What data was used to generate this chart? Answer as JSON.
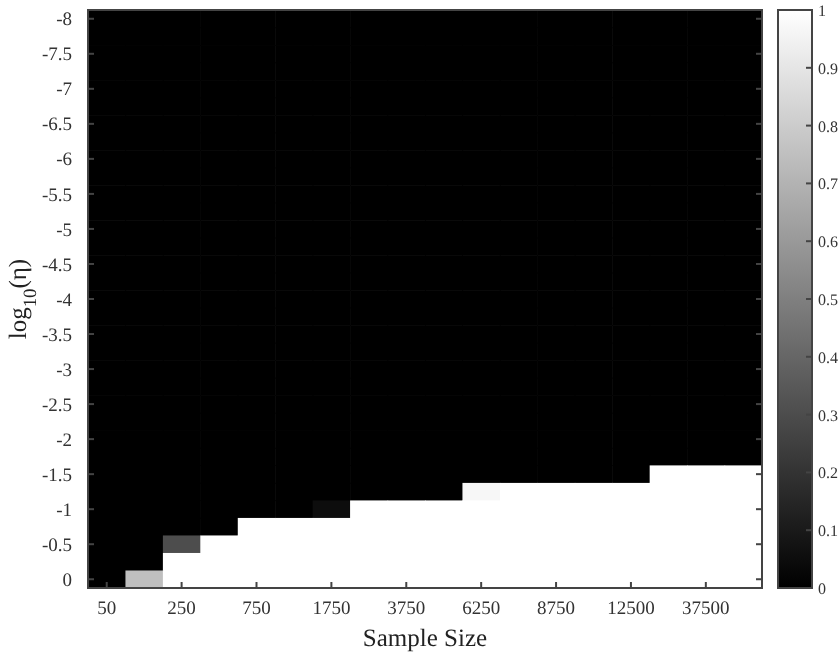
{
  "chart_data": {
    "type": "heatmap",
    "xlabel": "Sample Size",
    "ylabel": "log$_{10}$(η)",
    "categories": [
      "50",
      null,
      "250",
      null,
      "750",
      null,
      "1750",
      null,
      "3750",
      null,
      "6250",
      null,
      "8750",
      null,
      "12500",
      null,
      "37500",
      null
    ],
    "y_categories": [
      "-8",
      null,
      "-7.5",
      null,
      "-7",
      null,
      "-6.5",
      null,
      "-6",
      null,
      "-5.5",
      null,
      "-5",
      null,
      "-4.5",
      null,
      "-4",
      null,
      "-3.5",
      null,
      "-3",
      null,
      "-2.5",
      null,
      "-2",
      null,
      "-1.5",
      null,
      "-1",
      null,
      "-0.5",
      null,
      "0"
    ],
    "cells": [
      [
        0,
        0,
        0,
        0,
        0,
        0,
        0,
        0,
        0,
        0,
        0,
        0,
        0,
        0,
        0,
        0,
        0,
        0
      ],
      [
        0,
        0,
        0,
        0,
        0,
        0,
        0,
        0,
        0,
        0,
        0,
        0,
        0,
        0,
        0,
        0,
        0,
        0
      ],
      [
        0,
        0,
        0,
        0,
        0,
        0,
        0,
        0,
        0,
        0,
        0,
        0,
        0,
        0,
        0,
        0,
        0,
        0
      ],
      [
        0,
        0,
        0,
        0,
        0,
        0,
        0,
        0,
        0,
        0,
        0,
        0,
        0,
        0,
        0,
        0,
        0,
        0
      ],
      [
        0,
        0,
        0,
        0,
        0,
        0,
        0,
        0,
        0,
        0,
        0,
        0,
        0,
        0,
        0,
        0,
        0,
        0
      ],
      [
        0,
        0,
        0,
        0,
        0,
        0,
        0,
        0,
        0,
        0,
        0,
        0,
        0,
        0,
        0,
        0,
        0,
        0
      ],
      [
        0,
        0,
        0,
        0,
        0,
        0,
        0,
        0,
        0,
        0,
        0,
        0,
        0,
        0,
        0,
        0,
        0,
        0
      ],
      [
        0,
        0,
        0,
        0,
        0,
        0,
        0,
        0,
        0,
        0,
        0,
        0,
        0,
        0,
        0,
        0,
        0,
        0
      ],
      [
        0,
        0,
        0,
        0,
        0,
        0,
        0,
        0,
        0,
        0,
        0,
        0,
        0,
        0,
        0,
        0,
        0,
        0
      ],
      [
        0,
        0,
        0,
        0,
        0,
        0,
        0,
        0,
        0,
        0,
        0,
        0,
        0,
        0,
        0,
        0,
        0,
        0
      ],
      [
        0,
        0,
        0,
        0,
        0,
        0,
        0,
        0,
        0,
        0,
        0,
        0,
        0,
        0,
        0,
        0,
        0,
        0
      ],
      [
        0,
        0,
        0,
        0,
        0,
        0,
        0,
        0,
        0,
        0,
        0,
        0,
        0,
        0,
        0,
        0,
        0,
        0
      ],
      [
        0,
        0,
        0,
        0,
        0,
        0,
        0,
        0,
        0,
        0,
        0,
        0,
        0,
        0,
        0,
        0,
        0,
        0
      ],
      [
        0,
        0,
        0,
        0,
        0,
        0,
        0,
        0,
        0,
        0,
        0,
        0,
        0,
        0,
        0,
        0,
        0,
        0
      ],
      [
        0,
        0,
        0,
        0,
        0,
        0,
        0,
        0,
        0,
        0,
        0,
        0,
        0,
        0,
        0,
        0,
        0,
        0
      ],
      [
        0,
        0,
        0,
        0,
        0,
        0,
        0,
        0,
        0,
        0,
        0,
        0,
        0,
        0,
        0,
        0,
        0,
        0
      ],
      [
        0,
        0,
        0,
        0,
        0,
        0,
        0,
        0,
        0,
        0,
        0,
        0,
        0,
        0,
        0,
        0,
        0,
        0
      ],
      [
        0,
        0,
        0,
        0,
        0,
        0,
        0,
        0,
        0,
        0,
        0,
        0,
        0,
        0,
        0,
        0,
        0,
        0
      ],
      [
        0,
        0,
        0,
        0,
        0,
        0,
        0,
        0,
        0,
        0,
        0,
        0,
        0,
        0,
        0,
        0,
        0,
        0
      ],
      [
        0,
        0,
        0,
        0,
        0,
        0,
        0,
        0,
        0,
        0,
        0,
        0,
        0,
        0,
        0,
        0,
        0,
        0
      ],
      [
        0,
        0,
        0,
        0,
        0,
        0,
        0,
        0,
        0,
        0,
        0,
        0,
        0,
        0,
        0,
        0,
        0,
        0
      ],
      [
        0,
        0,
        0,
        0,
        0,
        0,
        0,
        0,
        0,
        0,
        0,
        0,
        0,
        0,
        0,
        0,
        0,
        0
      ],
      [
        0,
        0,
        0,
        0,
        0,
        0,
        0,
        0,
        0,
        0,
        0,
        0,
        0,
        0,
        0,
        0,
        0,
        0
      ],
      [
        0,
        0,
        0,
        0,
        0,
        0,
        0,
        0,
        0,
        0,
        0,
        0,
        0,
        0,
        0,
        0,
        0,
        0
      ],
      [
        0,
        0,
        0,
        0,
        0,
        0,
        0,
        0,
        0,
        0,
        0,
        0,
        0,
        0,
        0,
        0,
        0,
        0
      ],
      [
        0,
        0,
        0,
        0,
        0,
        0,
        0,
        0,
        0,
        0,
        0,
        0,
        0,
        0,
        0,
        0,
        0,
        0
      ],
      [
        0,
        0,
        0,
        0,
        0,
        0,
        0,
        0,
        0,
        0,
        0,
        0,
        0,
        0,
        0,
        1,
        1,
        1
      ],
      [
        0,
        0,
        0,
        0,
        0,
        0,
        0,
        0,
        0,
        0,
        0.97,
        1,
        1,
        1,
        1,
        1,
        1,
        1
      ],
      [
        0,
        0,
        0,
        0,
        0,
        0,
        0.05,
        1,
        1,
        1,
        1,
        1,
        1,
        1,
        1,
        1,
        1,
        1
      ],
      [
        0,
        0,
        0,
        0,
        1,
        1,
        1,
        1,
        1,
        1,
        1,
        1,
        1,
        1,
        1,
        1,
        1,
        1
      ],
      [
        0,
        0,
        0.3,
        1,
        1,
        1,
        1,
        1,
        1,
        1,
        1,
        1,
        1,
        1,
        1,
        1,
        1,
        1
      ],
      [
        0,
        0,
        1,
        1,
        1,
        1,
        1,
        1,
        1,
        1,
        1,
        1,
        1,
        1,
        1,
        1,
        1,
        1
      ],
      [
        0,
        0.75,
        1,
        1,
        1,
        1,
        1,
        1,
        1,
        1,
        1,
        1,
        1,
        1,
        1,
        1,
        1,
        1
      ]
    ],
    "clim": [
      0,
      1
    ],
    "cticks": [
      0,
      0.1,
      0.2,
      0.3,
      0.4,
      0.5,
      0.6,
      0.7,
      0.8,
      0.9,
      1
    ]
  }
}
